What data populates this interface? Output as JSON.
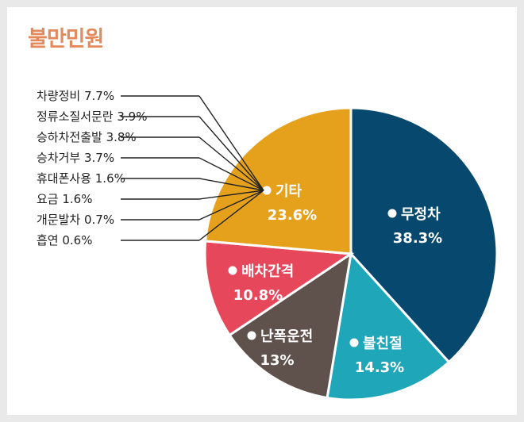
{
  "title": "불만민원",
  "chart_data": {
    "type": "pie",
    "title": "불만민원",
    "slices": [
      {
        "label": "무정차",
        "value": 38.3,
        "display": "38.3%",
        "color": "#07496e"
      },
      {
        "label": "불친절",
        "value": 14.3,
        "display": "14.3%",
        "color": "#1fa7b9"
      },
      {
        "label": "난폭운전",
        "value": 13.0,
        "display": "13%",
        "color": "#5f524c"
      },
      {
        "label": "배차간격",
        "value": 10.8,
        "display": "10.8%",
        "color": "#e7475a"
      },
      {
        "label": "기타",
        "value": 23.6,
        "display": "23.6%",
        "color": "#e5a11c"
      }
    ],
    "breakdown_of": "기타",
    "breakdown": [
      {
        "label": "차량정비",
        "value": 7.7,
        "display": "7.7%"
      },
      {
        "label": "정류소질서문란",
        "value": 3.9,
        "display": "3.9%"
      },
      {
        "label": "승하차전출발",
        "value": 3.8,
        "display": "3.8%"
      },
      {
        "label": "승차거부",
        "value": 3.7,
        "display": "3.7%"
      },
      {
        "label": "휴대폰사용",
        "value": 1.6,
        "display": "1.6%"
      },
      {
        "label": "요금",
        "value": 1.6,
        "display": "1.6%"
      },
      {
        "label": "개문발차",
        "value": 0.7,
        "display": "0.7%"
      },
      {
        "label": "흡연",
        "value": 0.6,
        "display": "0.6%"
      }
    ]
  }
}
